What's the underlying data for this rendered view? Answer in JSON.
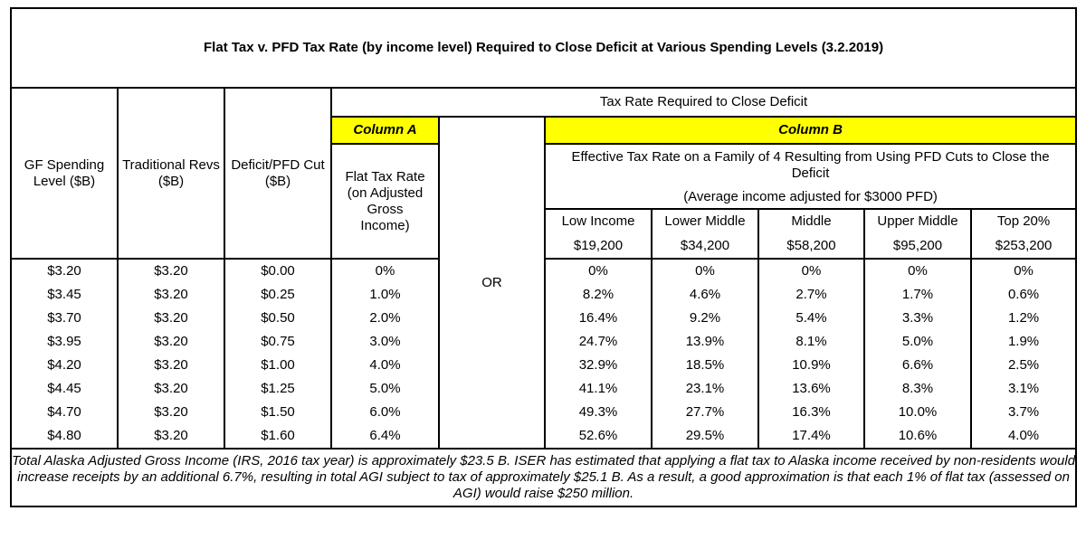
{
  "title": "Flat Tax v. PFD Tax Rate (by income level) Required to Close Deficit at Various Spending Levels (3.2.2019)",
  "headers": {
    "gf_spending": "GF Spending Level ($B)",
    "traditional_revs": "Traditional Revs ($B)",
    "deficit_pfd": "Deficit/PFD Cut ($B)",
    "tax_rate_required": "Tax Rate Required to Close Deficit",
    "column_a": "Column A",
    "column_b": "Column B",
    "flat_tax": "Flat Tax Rate (on Adjusted Gross Income)",
    "or": "OR",
    "effective_rate": "Effective Tax Rate on a Family of 4 Resulting from Using PFD Cuts to Close the Deficit",
    "average_income": "(Average income adjusted for $3000 PFD)",
    "income_levels": [
      {
        "label": "Low Income",
        "amount": "$19,200"
      },
      {
        "label": "Lower Middle",
        "amount": "$34,200"
      },
      {
        "label": "Middle",
        "amount": "$58,200"
      },
      {
        "label": "Upper Middle",
        "amount": "$95,200"
      },
      {
        "label": "Top 20%",
        "amount": "$253,200"
      }
    ]
  },
  "rows": [
    [
      "$3.20",
      "$3.20",
      "$0.00",
      "0%",
      "0%",
      "0%",
      "0%",
      "0%",
      "0%"
    ],
    [
      "$3.45",
      "$3.20",
      "$0.25",
      "1.0%",
      "8.2%",
      "4.6%",
      "2.7%",
      "1.7%",
      "0.6%"
    ],
    [
      "$3.70",
      "$3.20",
      "$0.50",
      "2.0%",
      "16.4%",
      "9.2%",
      "5.4%",
      "3.3%",
      "1.2%"
    ],
    [
      "$3.95",
      "$3.20",
      "$0.75",
      "3.0%",
      "24.7%",
      "13.9%",
      "8.1%",
      "5.0%",
      "1.9%"
    ],
    [
      "$4.20",
      "$3.20",
      "$1.00",
      "4.0%",
      "32.9%",
      "18.5%",
      "10.9%",
      "6.6%",
      "2.5%"
    ],
    [
      "$4.45",
      "$3.20",
      "$1.25",
      "5.0%",
      "41.1%",
      "23.1%",
      "13.6%",
      "8.3%",
      "3.1%"
    ],
    [
      "$4.70",
      "$3.20",
      "$1.50",
      "6.0%",
      "49.3%",
      "27.7%",
      "16.3%",
      "10.0%",
      "3.7%"
    ],
    [
      "$4.80",
      "$3.20",
      "$1.60",
      "6.4%",
      "52.6%",
      "29.5%",
      "17.4%",
      "10.6%",
      "4.0%"
    ]
  ],
  "footnote": "Total Alaska Adjusted Gross Income (IRS, 2016 tax year) is approximately $23.5 B. ISER has estimated that applying a flat tax to Alaska income received by non-residents would increase receipts by an additional 6.7%, resulting in total AGI subject to tax of approximately $25.1 B. As a result, a good approximation is that each 1% of flat tax (assessed on AGI) would raise $250 million.",
  "colors": {
    "highlight": "#ffff00",
    "border": "#000000",
    "background": "#ffffff"
  }
}
